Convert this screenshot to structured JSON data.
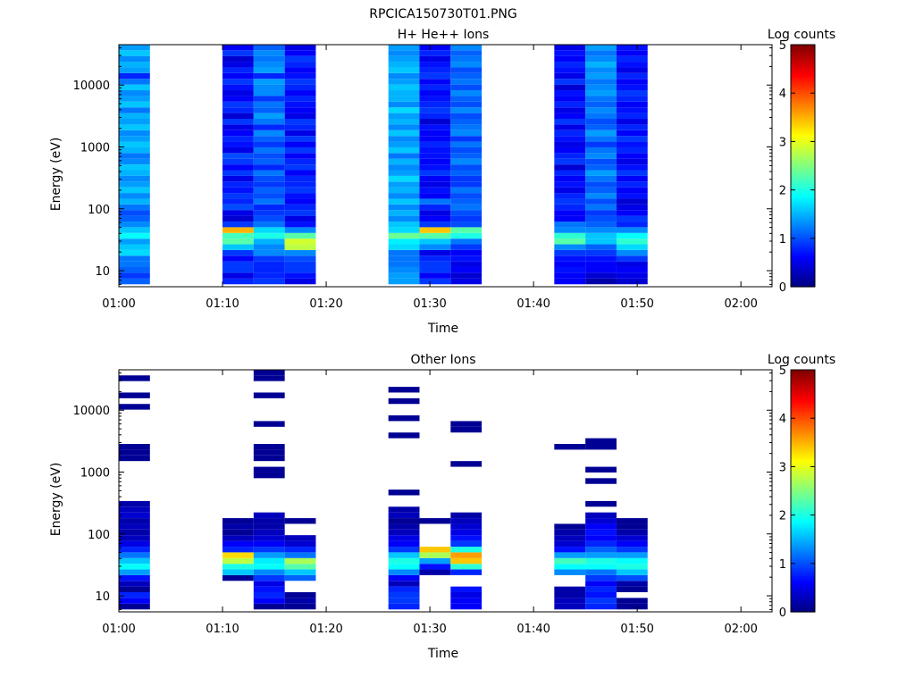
{
  "figure_title": "RPCICA150730T01.PNG",
  "colorscale": {
    "stops": [
      "#000080",
      "#0000ff",
      "#0080ff",
      "#00ffff",
      "#80ff80",
      "#ffff00",
      "#ff8000",
      "#ff0000",
      "#800000"
    ]
  },
  "chart_data": [
    {
      "type": "heatmap",
      "title": "H+ He++ Ions",
      "xlabel": "Time",
      "ylabel": "Energy (eV)",
      "colorbar_label": "Log counts",
      "colorbar_ticks": [
        "0",
        "1",
        "2",
        "3",
        "4",
        "5"
      ],
      "clim": [
        0,
        5
      ],
      "xlim": [
        "01:00",
        "02:03"
      ],
      "ylim": [
        5.5,
        45000
      ],
      "y_scale": "log",
      "x_ticks": [
        "01:00",
        "01:10",
        "01:20",
        "01:30",
        "01:40",
        "01:50",
        "02:00"
      ],
      "y_ticks": [
        "10",
        "100",
        "1000",
        "10000"
      ],
      "energy_bins_ev": [
        6.7,
        8.3,
        10.3,
        12.7,
        15.7,
        19.4,
        24,
        29.6,
        36.6,
        45.3,
        56,
        69,
        86,
        106,
        131,
        162,
        200,
        248,
        306,
        379,
        468,
        579,
        716,
        886,
        1095,
        1354,
        1675,
        2071,
        2562,
        3169,
        3919,
        4848,
        5996,
        7417,
        9174,
        11347,
        14035,
        17360,
        21472,
        26558,
        32849,
        40631
      ],
      "time_columns": [
        {
          "start": "01:00",
          "end": "01:03",
          "log_counts": [
            1.1,
            0.9,
            1.1,
            1.2,
            1.2,
            1.7,
            1.6,
            1.4,
            1.9,
            1.6,
            1.3,
            1.1,
            1.0,
            1.2,
            1.5,
            1.3,
            1.6,
            1.4,
            1.3,
            1.5,
            1.6,
            1.3,
            1.2,
            1.5,
            1.6,
            1.4,
            1.3,
            1.6,
            1.4,
            1.5,
            1.2,
            1.6,
            1.4,
            1.3,
            1.6,
            1.2,
            0.8,
            1.4,
            1.5,
            1.3,
            1.6,
            1.4
          ]
        },
        {
          "start": "01:10",
          "end": "01:13",
          "log_counts": [
            0.8,
            0.5,
            0.9,
            0.9,
            0.6,
            0.9,
            1.6,
            2.3,
            2.2,
            3.5,
            0.9,
            0.4,
            0.5,
            1.0,
            0.8,
            0.9,
            0.7,
            0.8,
            0.5,
            0.9,
            0.6,
            0.9,
            1.0,
            0.5,
            0.7,
            0.8,
            0.6,
            0.5,
            0.9,
            0.4,
            0.8,
            0.9,
            0.6,
            0.5,
            0.7,
            0.9,
            0.6,
            0.8,
            0.5,
            0.4,
            0.9,
            0.6
          ]
        },
        {
          "start": "01:13",
          "end": "01:16",
          "log_counts": [
            0.9,
            0.8,
            0.8,
            0.8,
            0.9,
            1.3,
            1.3,
            1.5,
            2.0,
            1.7,
            1.2,
            1.0,
            0.9,
            0.8,
            1.2,
            1.0,
            1.1,
            0.9,
            1.0,
            1.2,
            0.8,
            1.1,
            1.0,
            1.2,
            0.9,
            1.1,
            1.3,
            0.8,
            1.2,
            1.4,
            1.1,
            1.2,
            0.9,
            1.3,
            1.3,
            1.4,
            0.8,
            1.4,
            1.3,
            1.2,
            1.3,
            1.1
          ]
        },
        {
          "start": "01:16",
          "end": "01:19",
          "log_counts": [
            0.5,
            0.7,
            0.9,
            0.9,
            1.0,
            1.3,
            2.8,
            2.9,
            2.3,
            1.3,
            0.7,
            0.5,
            0.9,
            0.8,
            0.6,
            0.7,
            0.9,
            0.8,
            0.8,
            0.6,
            0.9,
            0.8,
            0.6,
            0.9,
            0.6,
            0.9,
            0.5,
            0.8,
            0.9,
            0.5,
            0.6,
            0.7,
            0.8,
            0.6,
            0.8,
            0.9,
            0.7,
            0.6,
            0.8,
            0.9,
            0.6,
            0.5
          ]
        },
        {
          "start": "01:26",
          "end": "01:29",
          "log_counts": [
            1.4,
            1.4,
            1.3,
            1.2,
            1.2,
            1.2,
            1.7,
            1.8,
            2.4,
            1.7,
            1.6,
            1.3,
            1.5,
            1.3,
            1.6,
            1.3,
            1.5,
            1.4,
            1.7,
            1.4,
            1.3,
            1.5,
            1.2,
            1.6,
            1.4,
            1.3,
            1.6,
            1.3,
            1.5,
            1.4,
            1.7,
            1.3,
            1.5,
            1.5,
            1.6,
            1.4,
            1.3,
            1.6,
            1.5,
            1.4,
            1.3,
            1.4
          ]
        },
        {
          "start": "01:29",
          "end": "01:32",
          "log_counts": [
            0.9,
            0.6,
            0.9,
            0.9,
            0.8,
            0.5,
            1.3,
            1.6,
            2.3,
            3.4,
            0.9,
            0.6,
            0.5,
            0.8,
            1.2,
            0.6,
            0.7,
            0.5,
            0.6,
            0.9,
            0.7,
            0.6,
            0.7,
            0.7,
            0.8,
            0.6,
            0.6,
            0.7,
            0.4,
            0.8,
            0.9,
            0.8,
            0.7,
            0.6,
            0.8,
            0.6,
            0.9,
            0.8,
            0.7,
            0.5,
            0.8,
            0.6
          ]
        },
        {
          "start": "01:32",
          "end": "01:35",
          "log_counts": [
            0.5,
            0.4,
            0.6,
            0.5,
            0.7,
            0.6,
            0.9,
            1.2,
            2.0,
            2.3,
            1.0,
            0.9,
            1.0,
            1.2,
            1.1,
            1.0,
            1.2,
            0.9,
            0.9,
            1.1,
            1.0,
            1.3,
            1.1,
            1.0,
            1.2,
            0.9,
            1.3,
            1.2,
            1.1,
            1.0,
            1.3,
            1.0,
            1.1,
            1.3,
            1.0,
            1.2,
            1.1,
            1.0,
            1.3,
            1.2,
            1.1,
            1.3
          ]
        },
        {
          "start": "01:42",
          "end": "01:45",
          "log_counts": [
            0.6,
            0.6,
            0.7,
            0.6,
            0.7,
            0.9,
            1.3,
            2.3,
            2.1,
            1.3,
            1.2,
            0.6,
            0.6,
            0.8,
            0.9,
            0.8,
            0.5,
            0.7,
            0.6,
            0.8,
            0.4,
            0.9,
            0.8,
            0.6,
            0.5,
            0.7,
            0.8,
            0.5,
            0.9,
            0.6,
            0.5,
            0.8,
            0.6,
            0.7,
            0.4,
            0.9,
            0.5,
            0.7,
            0.8,
            0.6,
            0.7,
            0.5
          ]
        },
        {
          "start": "01:45",
          "end": "01:48",
          "log_counts": [
            0.2,
            0.4,
            0.6,
            0.6,
            0.7,
            0.9,
            1.1,
            1.6,
            1.6,
            1.3,
            1.1,
            1.0,
            0.9,
            1.2,
            1.0,
            1.3,
            1.1,
            1.0,
            1.2,
            1.4,
            1.1,
            1.0,
            1.3,
            1.2,
            0.9,
            1.2,
            1.4,
            1.1,
            1.0,
            1.2,
            1.3,
            1.1,
            1.2,
            1.4,
            1.3,
            1.2,
            1.4,
            1.3,
            1.5,
            1.3,
            1.2,
            1.4
          ]
        },
        {
          "start": "01:48",
          "end": "01:51",
          "log_counts": [
            0.4,
            0.5,
            0.6,
            0.5,
            0.9,
            1.3,
            1.7,
            2.1,
            1.9,
            1.3,
            0.8,
            0.9,
            0.6,
            0.5,
            0.4,
            0.7,
            0.6,
            0.8,
            0.6,
            0.9,
            0.7,
            0.5,
            0.6,
            0.8,
            0.7,
            0.9,
            0.6,
            0.8,
            0.5,
            0.8,
            0.7,
            0.6,
            0.8,
            0.9,
            0.7,
            0.6,
            0.8,
            0.5,
            0.7,
            0.8,
            0.6,
            0.7
          ]
        }
      ]
    },
    {
      "type": "heatmap",
      "title": "Other Ions",
      "xlabel": "Time",
      "ylabel": "Energy (eV)",
      "colorbar_label": "Log counts",
      "colorbar_ticks": [
        "0",
        "1",
        "2",
        "3",
        "4",
        "5"
      ],
      "clim": [
        0,
        5
      ],
      "xlim": [
        "01:00",
        "02:03"
      ],
      "ylim": [
        5.5,
        45000
      ],
      "y_scale": "log",
      "x_ticks": [
        "01:00",
        "01:10",
        "01:20",
        "01:30",
        "01:40",
        "01:50",
        "02:00"
      ],
      "y_ticks": [
        "10",
        "100",
        "1000",
        "10000"
      ],
      "energy_bins_ev": [
        6.7,
        8.3,
        10.3,
        12.7,
        15.7,
        19.4,
        24,
        29.6,
        36.6,
        45.3,
        56,
        69,
        86,
        106,
        131,
        162,
        200,
        248,
        306,
        379,
        468,
        579,
        716,
        886,
        1095,
        1354,
        1675,
        2071,
        2562,
        3169,
        3919,
        4848,
        5996,
        7417,
        9174,
        11347,
        14035,
        17360,
        21472,
        26558,
        32849,
        40631
      ],
      "time_columns": [
        {
          "start": "01:00",
          "end": "01:03",
          "log_counts": [
            0.1,
            0.6,
            0.8,
            0.1,
            0.3,
            0.7,
            1.4,
            1.9,
            1.6,
            1.2,
            0.8,
            0.5,
            0.3,
            0.2,
            0.3,
            0.2,
            0.4,
            0.3,
            0.2,
            null,
            null,
            null,
            null,
            null,
            null,
            null,
            0.1,
            0.1,
            0.1,
            null,
            null,
            null,
            null,
            null,
            null,
            0.1,
            null,
            0.1,
            null,
            null,
            0.1,
            null
          ]
        },
        {
          "start": "01:10",
          "end": "01:13",
          "log_counts": [
            null,
            null,
            null,
            null,
            null,
            0.1,
            1.6,
            2.0,
            2.8,
            3.3,
            0.8,
            0.6,
            0.3,
            0.1,
            0.2,
            0.1,
            null,
            null,
            null,
            null,
            null,
            null,
            null,
            null,
            null,
            null,
            null,
            null,
            null,
            null,
            null,
            null,
            null,
            null,
            null,
            null,
            null,
            null,
            null,
            null,
            null,
            null
          ]
        },
        {
          "start": "01:13",
          "end": "01:16",
          "log_counts": [
            0.1,
            0.6,
            0.8,
            0.7,
            0.5,
            0.9,
            1.3,
            1.9,
            1.8,
            1.4,
            0.9,
            0.6,
            0.4,
            0.3,
            0.2,
            0.2,
            0.3,
            null,
            null,
            null,
            null,
            null,
            null,
            0.1,
            0.1,
            null,
            0.1,
            0.1,
            0.1,
            null,
            null,
            null,
            0.1,
            null,
            null,
            null,
            null,
            0.1,
            null,
            null,
            0.1,
            0.1
          ]
        },
        {
          "start": "01:16",
          "end": "01:19",
          "log_counts": [
            0.1,
            0.2,
            0.1,
            null,
            null,
            1.1,
            1.6,
            2.3,
            2.7,
            1.2,
            0.8,
            0.4,
            0.3,
            null,
            null,
            0.1,
            null,
            null,
            null,
            null,
            null,
            null,
            null,
            null,
            null,
            null,
            null,
            null,
            null,
            null,
            null,
            null,
            null,
            null,
            null,
            null,
            null,
            null,
            null,
            null,
            null,
            null
          ]
        },
        {
          "start": "01:26",
          "end": "01:29",
          "log_counts": [
            0.8,
            0.9,
            0.9,
            0.8,
            0.3,
            0.6,
            1.3,
            1.9,
            2.0,
            1.6,
            0.9,
            0.6,
            0.5,
            0.3,
            0.2,
            0.1,
            0.3,
            0.2,
            null,
            null,
            0.1,
            null,
            null,
            null,
            null,
            null,
            null,
            null,
            null,
            null,
            0.1,
            null,
            null,
            0.1,
            null,
            null,
            0.1,
            null,
            0.1,
            null,
            null,
            null
          ]
        },
        {
          "start": "01:29",
          "end": "01:32",
          "log_counts": [
            null,
            null,
            null,
            null,
            null,
            null,
            0.2,
            0.7,
            1.4,
            2.7,
            3.4,
            null,
            null,
            null,
            null,
            0.1,
            null,
            null,
            null,
            null,
            null,
            null,
            null,
            null,
            null,
            null,
            null,
            null,
            null,
            null,
            null,
            null,
            null,
            null,
            null,
            null,
            null,
            null,
            null,
            null,
            null,
            null
          ]
        },
        {
          "start": "01:32",
          "end": "01:35",
          "log_counts": [
            0.6,
            0.6,
            0.5,
            0.7,
            null,
            null,
            0.8,
            2.1,
            3.4,
            3.6,
            2.0,
            0.9,
            0.7,
            0.5,
            0.4,
            0.3,
            0.2,
            null,
            null,
            null,
            null,
            null,
            null,
            null,
            null,
            0.1,
            null,
            null,
            null,
            null,
            null,
            0.1,
            0.1,
            null,
            null,
            null,
            null,
            null,
            null,
            null,
            null,
            null
          ]
        },
        {
          "start": "01:42",
          "end": "01:45",
          "log_counts": [
            0.3,
            0.3,
            0.2,
            0.2,
            null,
            null,
            1.3,
            1.9,
            2.2,
            1.4,
            0.7,
            0.4,
            0.3,
            0.2,
            0.1,
            null,
            null,
            null,
            null,
            null,
            null,
            null,
            null,
            null,
            null,
            null,
            null,
            null,
            0.1,
            null,
            null,
            null,
            null,
            null,
            null,
            null,
            null,
            null,
            null,
            null,
            null,
            null
          ]
        },
        {
          "start": "01:45",
          "end": "01:48",
          "log_counts": [
            0.8,
            0.9,
            0.7,
            0.8,
            0.6,
            0.9,
            1.2,
            1.9,
            2.0,
            1.4,
            1.1,
            0.8,
            0.6,
            0.7,
            0.6,
            0.4,
            0.3,
            null,
            0.1,
            null,
            null,
            null,
            0.1,
            null,
            0.1,
            null,
            null,
            null,
            0.1,
            0.1,
            null,
            null,
            null,
            null,
            null,
            null,
            null,
            null,
            null,
            null,
            null,
            null
          ]
        },
        {
          "start": "01:48",
          "end": "01:51",
          "log_counts": [
            0.1,
            0.1,
            null,
            0.1,
            0.2,
            1.0,
            1.6,
            2.0,
            1.9,
            1.4,
            0.9,
            0.6,
            0.4,
            0.2,
            0.1,
            0.1,
            null,
            null,
            null,
            null,
            null,
            null,
            null,
            null,
            null,
            null,
            null,
            null,
            null,
            null,
            null,
            null,
            null,
            null,
            null,
            null,
            null,
            null,
            null,
            null,
            null,
            null
          ]
        }
      ]
    }
  ]
}
